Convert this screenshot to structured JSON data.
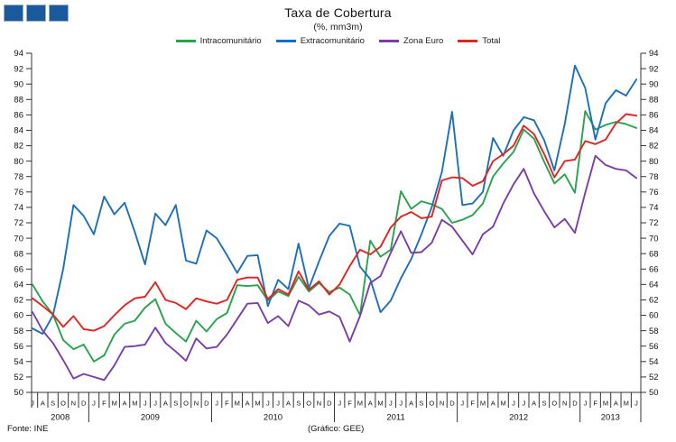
{
  "logo": {
    "color": "#1A5A9C",
    "square_count": 3
  },
  "header": {
    "title": "Taxa de Cobertura",
    "subtitle": "(%, mm3m)"
  },
  "footer": {
    "source": "Fonte: INE",
    "credit": "(Gráfico: GEE)"
  },
  "chart_data": {
    "type": "line",
    "title": "Taxa de Cobertura",
    "subtitle": "(%, mm3m)",
    "ylim": [
      50,
      94
    ],
    "ytick_step": 2,
    "grid": false,
    "legend_position": "top",
    "y_axis_left": true,
    "y_axis_right": true,
    "x_months": [
      "J",
      "A",
      "S",
      "O",
      "N",
      "D",
      "J",
      "F",
      "M",
      "A",
      "M",
      "J",
      "J",
      "A",
      "S",
      "O",
      "N",
      "D",
      "J",
      "F",
      "M",
      "A",
      "M",
      "J",
      "J",
      "A",
      "S",
      "O",
      "N",
      "D",
      "J",
      "F",
      "M",
      "A",
      "M",
      "J",
      "J",
      "A",
      "S",
      "O",
      "N",
      "D",
      "J",
      "F",
      "M",
      "A",
      "M",
      "J",
      "J",
      "A",
      "S",
      "O",
      "N",
      "D",
      "J",
      "F",
      "M",
      "A",
      "M",
      "J"
    ],
    "years": [
      {
        "label": "2008",
        "start": 0,
        "count": 6
      },
      {
        "label": "2009",
        "start": 6,
        "count": 12
      },
      {
        "label": "2010",
        "start": 18,
        "count": 12
      },
      {
        "label": "2011",
        "start": 30,
        "count": 12
      },
      {
        "label": "2012",
        "start": 42,
        "count": 12
      },
      {
        "label": "2013",
        "start": 54,
        "count": 6
      }
    ],
    "series": [
      {
        "name": "Intracomunitário",
        "color": "#29A24E",
        "values": [
          64.0,
          61.8,
          60.1,
          56.8,
          55.6,
          56.2,
          54.0,
          54.8,
          57.5,
          58.9,
          59.3,
          61.0,
          62.1,
          58.9,
          57.7,
          56.6,
          59.3,
          57.9,
          59.5,
          60.3,
          63.9,
          63.8,
          63.9,
          61.9,
          63.1,
          62.5,
          65.0,
          63.1,
          64.2,
          63.0,
          63.6,
          62.7,
          60.0,
          69.7,
          67.6,
          68.5,
          76.1,
          73.8,
          74.8,
          74.4,
          73.8,
          72.0,
          72.4,
          73.0,
          74.5,
          78.0,
          79.7,
          81.2,
          84.1,
          82.9,
          79.9,
          77.1,
          78.3,
          75.9,
          86.5,
          84.1,
          84.7,
          85.1,
          84.8,
          84.3
        ]
      },
      {
        "name": "Extracomunitário",
        "color": "#1E6FBA",
        "values": [
          58.3,
          57.6,
          60.0,
          66.0,
          74.3,
          72.9,
          70.5,
          75.4,
          73.1,
          74.6,
          70.8,
          66.6,
          73.2,
          71.7,
          74.3,
          67.1,
          66.7,
          71.0,
          70.0,
          67.8,
          65.5,
          67.7,
          67.8,
          61.2,
          64.6,
          63.4,
          69.3,
          63.5,
          67.0,
          70.3,
          71.9,
          71.6,
          66.3,
          64.7,
          60.4,
          61.9,
          64.8,
          67.3,
          70.5,
          74.0,
          78.6,
          86.4,
          74.3,
          74.5,
          76.0,
          83.0,
          80.7,
          84.0,
          85.7,
          85.3,
          82.7,
          78.8,
          84.8,
          92.4,
          89.5,
          82.8,
          87.5,
          89.2,
          88.5,
          90.6
        ]
      },
      {
        "name": "Zona Euro",
        "color": "#7A3EA8",
        "values": [
          60.4,
          58.0,
          56.4,
          54.2,
          51.8,
          52.4,
          52.0,
          51.6,
          53.5,
          55.9,
          56.0,
          56.2,
          58.4,
          56.4,
          55.3,
          54.1,
          57.0,
          55.7,
          55.9,
          57.5,
          59.5,
          61.5,
          61.6,
          59.0,
          59.9,
          58.6,
          61.9,
          61.3,
          60.1,
          60.5,
          59.8,
          56.6,
          59.9,
          64.2,
          65.1,
          68.1,
          70.9,
          68.1,
          68.2,
          69.4,
          72.4,
          71.5,
          69.7,
          67.9,
          70.5,
          71.5,
          74.5,
          77.0,
          79.0,
          75.8,
          73.5,
          71.4,
          72.5,
          70.7,
          75.9,
          80.7,
          79.5,
          79.0,
          78.8,
          77.8
        ]
      },
      {
        "name": "Total",
        "color": "#E02420",
        "values": [
          62.2,
          61.2,
          60.1,
          58.5,
          59.9,
          58.2,
          58.0,
          58.6,
          60.0,
          61.3,
          62.2,
          62.4,
          64.3,
          62.0,
          61.6,
          60.8,
          62.2,
          61.8,
          61.5,
          62.0,
          64.6,
          64.9,
          64.9,
          62.1,
          63.4,
          62.7,
          65.7,
          63.3,
          64.4,
          62.7,
          64.0,
          66.4,
          68.5,
          67.9,
          68.9,
          71.4,
          72.8,
          73.4,
          72.6,
          72.8,
          77.5,
          77.9,
          77.8,
          76.8,
          77.4,
          80.0,
          80.9,
          82.0,
          84.6,
          83.5,
          80.9,
          77.9,
          80.0,
          80.2,
          82.6,
          82.2,
          82.8,
          84.9,
          86.1,
          85.9
        ]
      }
    ]
  }
}
